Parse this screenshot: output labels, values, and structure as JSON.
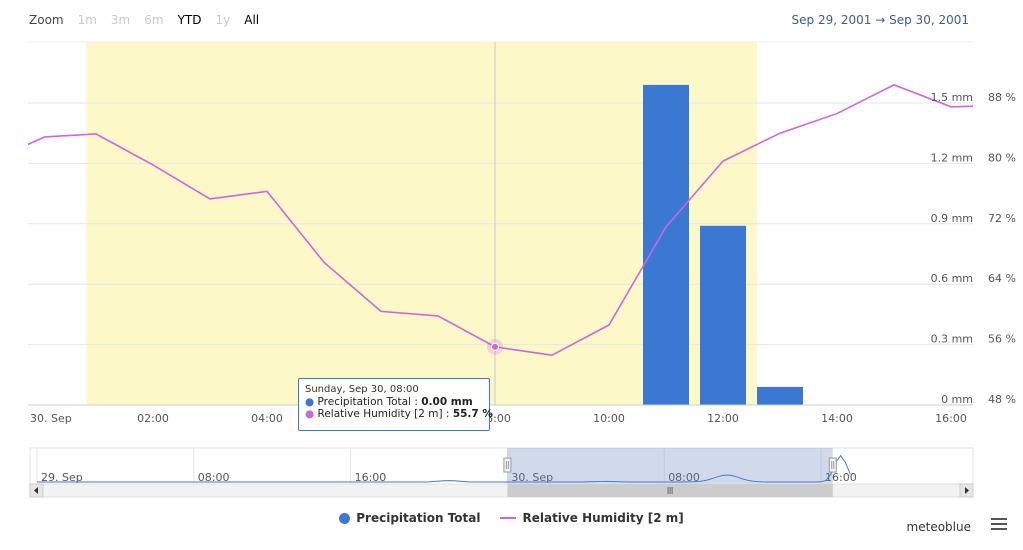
{
  "zoom": {
    "label": "Zoom",
    "buttons": [
      {
        "label": "1m",
        "state": "disabled"
      },
      {
        "label": "3m",
        "state": "disabled"
      },
      {
        "label": "6m",
        "state": "disabled"
      },
      {
        "label": "YTD",
        "state": "enabled"
      },
      {
        "label": "1y",
        "state": "disabled"
      },
      {
        "label": "All",
        "state": "enabled"
      }
    ]
  },
  "range": {
    "from": "Sep 29, 2001",
    "arrow": "→",
    "to": "Sep 30, 2001"
  },
  "chart_data": {
    "type": "bar+line",
    "x_tick_labels": [
      "30. Sep",
      "02:00",
      "04:00",
      "06:00",
      "08:00",
      "10:00",
      "12:00",
      "14:00",
      "16:00"
    ],
    "x_hours": [
      0,
      2,
      4,
      6,
      8,
      10,
      12,
      14,
      16
    ],
    "highlight_band_hours": [
      0.83,
      12.6
    ],
    "crosshair_hour": 8,
    "y_left_axis": {
      "unit": "mm",
      "ticks": [
        "0 mm",
        "0.3 mm",
        "0.6 mm",
        "0.9 mm",
        "1.2 mm",
        "1.5 mm"
      ],
      "range": [
        0,
        1.5
      ]
    },
    "y_right_axis": {
      "unit": "%",
      "ticks": [
        "48 %",
        "56 %",
        "64 %",
        "72 %",
        "80 %",
        "88 %"
      ],
      "range": [
        48,
        88
      ]
    },
    "series": [
      {
        "name": "Precipitation Total",
        "type": "bar",
        "color": "#3a78d4",
        "hours": [
          11,
          12,
          13
        ],
        "values": [
          1.59,
          0.89,
          0.09
        ]
      },
      {
        "name": "Relative Humidity [2 m]",
        "type": "line",
        "color": "#cc66dd",
        "hours": [
          -0.2,
          0.1,
          1,
          2,
          3,
          4,
          5,
          6,
          7,
          8,
          9,
          10,
          11,
          12,
          13,
          14,
          15,
          16,
          16.6
        ],
        "values": [
          82.5,
          83.5,
          83.9,
          79.8,
          75.3,
          76.3,
          66.9,
          60.4,
          59.8,
          55.7,
          54.6,
          58.6,
          71.6,
          80.3,
          84.0,
          86.6,
          90.4,
          87.5,
          87.6
        ]
      }
    ],
    "legend_position": "bottom-center"
  },
  "tooltip": {
    "header": "Sunday, Sep 30, 08:00",
    "rows": [
      {
        "label": "Precipitation Total",
        "sep": " : ",
        "value": "0.00 mm",
        "color": "#3a78d4"
      },
      {
        "label": "Relative Humidity [2 m]",
        "sep": " : ",
        "value": "55.7 %",
        "color": "#cc66dd"
      }
    ]
  },
  "navigator": {
    "tick_labels": [
      "29. Sep",
      "08:00",
      "16:00",
      "30. Sep",
      "08:00",
      "16:00"
    ],
    "tick_hours": [
      -24,
      -16,
      -8,
      0,
      8,
      16
    ],
    "selection_hours": [
      0,
      16.6
    ]
  },
  "legend": [
    {
      "label": "Precipitation Total",
      "icon": "circle-marker",
      "color": "#3a78d4"
    },
    {
      "label": "Relative Humidity [2 m]",
      "icon": "line-marker",
      "color": "#cc66dd"
    }
  ],
  "credit": "meteoblue",
  "menu_icon": "hamburger-menu-icon"
}
